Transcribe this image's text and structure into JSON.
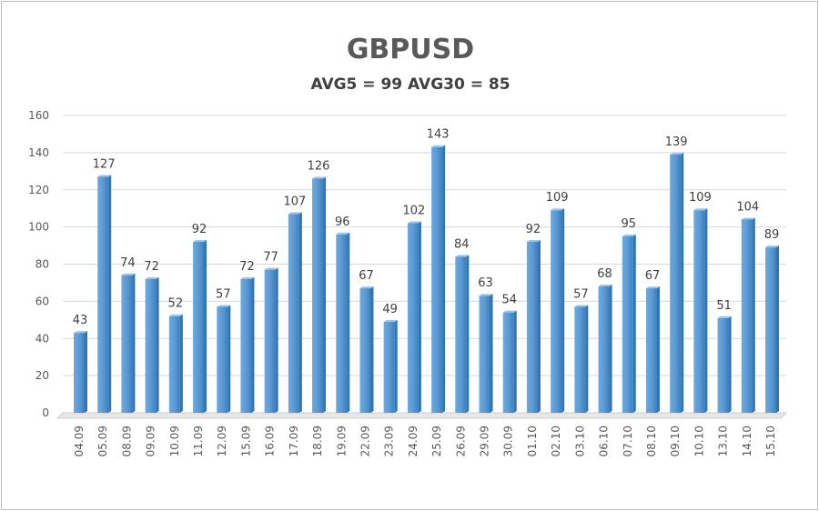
{
  "chart_data": {
    "type": "bar",
    "title": "GBPUSD",
    "subtitle": "AVG5 = 99 AVG30 = 85",
    "xlabel": "",
    "ylabel": "",
    "ylim": [
      0,
      160
    ],
    "yticks": [
      0,
      20,
      40,
      60,
      80,
      100,
      120,
      140,
      160
    ],
    "grid": true,
    "legend": "none",
    "categories": [
      "04.09",
      "05.09",
      "08.09",
      "09.09",
      "10.09",
      "11.09",
      "12.09",
      "15.09",
      "16.09",
      "17.09",
      "18.09",
      "19.09",
      "22.09",
      "23.09",
      "24.09",
      "25.09",
      "26.09",
      "29.09",
      "30.09",
      "01.10",
      "02.10",
      "03.10",
      "06.10",
      "07.10",
      "08.10",
      "09.10",
      "10.10",
      "13.10",
      "14.10",
      "15.10"
    ],
    "values": [
      43,
      127,
      74,
      72,
      52,
      92,
      57,
      72,
      77,
      107,
      126,
      96,
      67,
      49,
      102,
      143,
      84,
      63,
      54,
      92,
      109,
      57,
      68,
      95,
      67,
      139,
      109,
      51,
      104,
      89
    ],
    "colors": {
      "bar": "#5b9bd5",
      "bar_dark": "#2e75b6",
      "grid": "#d9d9d9"
    }
  }
}
